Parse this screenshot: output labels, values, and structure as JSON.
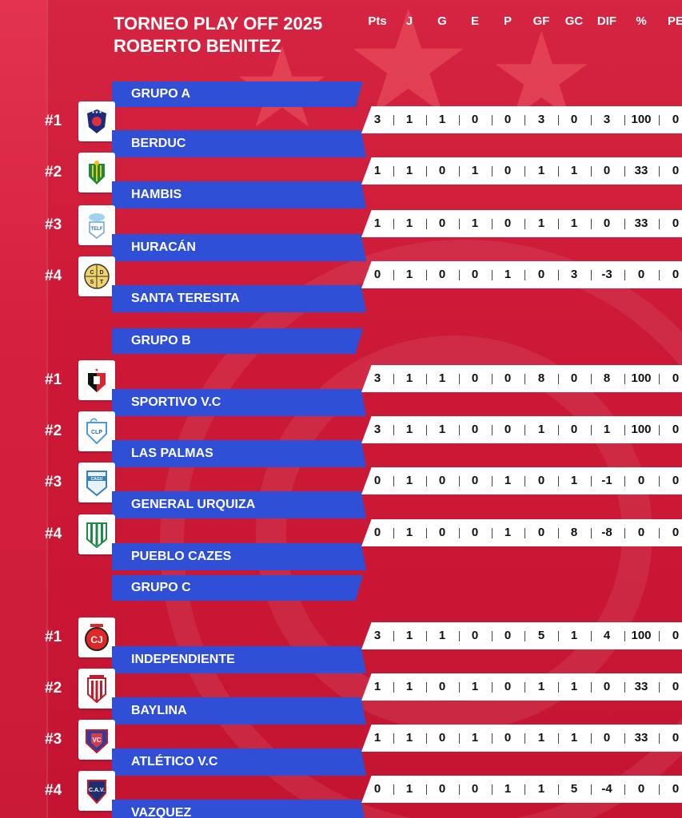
{
  "title": {
    "line1": "TORNEO PLAY OFF 2025",
    "line2": "ROBERTO BENITEZ"
  },
  "columns": [
    "Pts",
    "J",
    "G",
    "E",
    "P",
    "GF",
    "GC",
    "DIF",
    "%",
    "PE"
  ],
  "groups": [
    {
      "name": "GRUPO A",
      "teams": [
        {
          "rank": "#1",
          "name": "BERDUC",
          "logo": "berduc-shield-icon",
          "stats": [
            "3",
            "1",
            "1",
            "0",
            "0",
            "3",
            "0",
            "3",
            "100",
            "0"
          ]
        },
        {
          "rank": "#2",
          "name": "HAMBIS",
          "logo": "hambis-shield-icon",
          "stats": [
            "1",
            "1",
            "0",
            "1",
            "0",
            "1",
            "1",
            "0",
            "33",
            "0"
          ]
        },
        {
          "rank": "#3",
          "name": "HURACÁN",
          "logo": "huracan-shield-icon",
          "stats": [
            "1",
            "1",
            "0",
            "1",
            "0",
            "1",
            "1",
            "0",
            "33",
            "0"
          ]
        },
        {
          "rank": "#4",
          "name": "SANTA TERESITA",
          "logo": "santa-teresita-shield-icon",
          "stats": [
            "0",
            "1",
            "0",
            "0",
            "1",
            "0",
            "3",
            "-3",
            "0",
            "0"
          ]
        }
      ]
    },
    {
      "name": "GRUPO B",
      "teams": [
        {
          "rank": "#1",
          "name": "SPORTIVO V.C",
          "logo": "sportivo-shield-icon",
          "stats": [
            "3",
            "1",
            "1",
            "0",
            "0",
            "8",
            "0",
            "8",
            "100",
            "0"
          ]
        },
        {
          "rank": "#2",
          "name": "LAS PALMAS",
          "logo": "las-palmas-shield-icon",
          "stats": [
            "3",
            "1",
            "1",
            "0",
            "0",
            "1",
            "0",
            "1",
            "100",
            "0"
          ]
        },
        {
          "rank": "#3",
          "name": "GENERAL URQUIZA",
          "logo": "general-urquiza-shield-icon",
          "stats": [
            "0",
            "1",
            "0",
            "0",
            "1",
            "0",
            "1",
            "-1",
            "0",
            "0"
          ]
        },
        {
          "rank": "#4",
          "name": "PUEBLO CAZES",
          "logo": "pueblo-cazes-shield-icon",
          "stats": [
            "0",
            "1",
            "0",
            "0",
            "1",
            "0",
            "8",
            "-8",
            "0",
            "0"
          ]
        }
      ]
    },
    {
      "name": "GRUPO C",
      "teams": [
        {
          "rank": "#1",
          "name": "INDEPENDIENTE",
          "logo": "independiente-shield-icon",
          "stats": [
            "3",
            "1",
            "1",
            "0",
            "0",
            "5",
            "1",
            "4",
            "100",
            "0"
          ]
        },
        {
          "rank": "#2",
          "name": "BAYLINA",
          "logo": "baylina-shield-icon",
          "stats": [
            "1",
            "1",
            "0",
            "1",
            "0",
            "1",
            "1",
            "0",
            "33",
            "0"
          ]
        },
        {
          "rank": "#3",
          "name": "ATLÉTICO V.C",
          "logo": "atletico-shield-icon",
          "stats": [
            "1",
            "1",
            "0",
            "1",
            "0",
            "1",
            "1",
            "0",
            "33",
            "0"
          ]
        },
        {
          "rank": "#4",
          "name": "VAZQUEZ",
          "logo": "vazquez-shield-icon",
          "stats": [
            "0",
            "1",
            "0",
            "0",
            "1",
            "1",
            "5",
            "-4",
            "0",
            "0"
          ]
        }
      ]
    }
  ],
  "colors": {
    "background": "#d81f3f",
    "bar_blue": "#2f4fd6",
    "stat_bg": "#ffffff"
  }
}
